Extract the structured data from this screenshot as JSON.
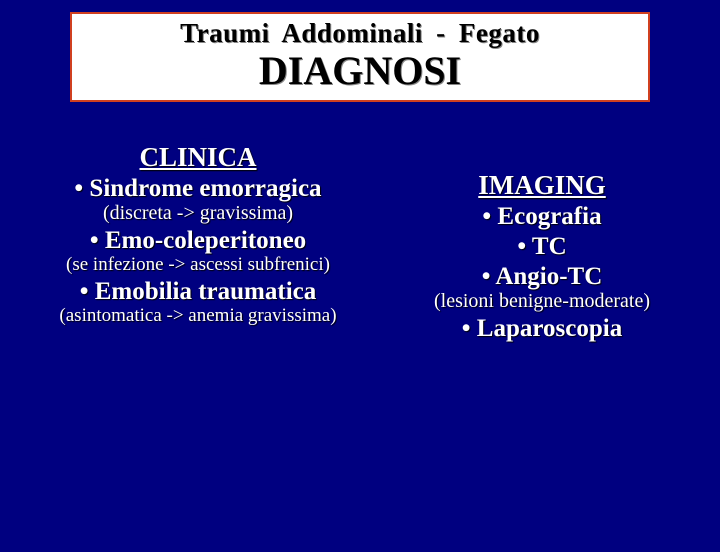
{
  "colors": {
    "background": "#000080",
    "header_bg": "#ffffff",
    "header_border": "#d04020",
    "text_main": "#ffffff",
    "header_text": "#000000"
  },
  "header": {
    "line1": "Traumi   Addominali - Fegato",
    "line2": "DIAGNOSI"
  },
  "left": {
    "title": "CLINICA",
    "item1": "• Sindrome  emorragica",
    "sub1": "(discreta -> gravissima)",
    "item2": "• Emo-coleperitoneo",
    "sub2": "(se infezione -> ascessi subfrenici)",
    "item3": "• Emobilia  traumatica",
    "sub3": "(asintomatica -> anemia gravissima)"
  },
  "right": {
    "title": "IMAGING",
    "item1": "• Ecografia",
    "item2": "• TC",
    "item3": "• Angio-TC",
    "sub1": "(lesioni  benigne-moderate)",
    "item4": "• Laparoscopia"
  }
}
